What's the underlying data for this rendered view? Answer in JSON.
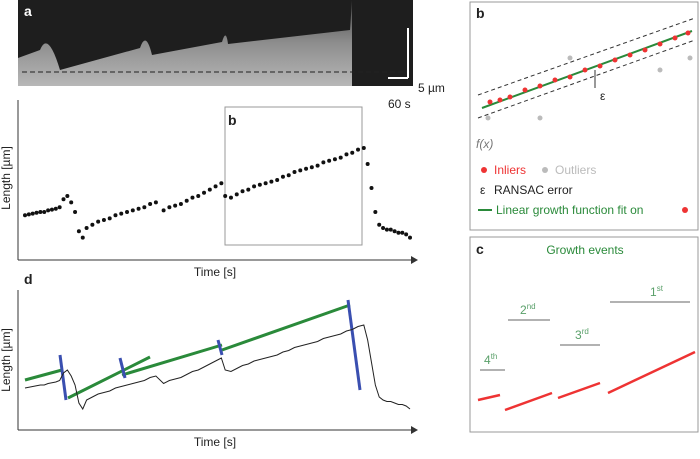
{
  "panels": {
    "a": "a",
    "b_inset": "b",
    "b": "b",
    "c": "c",
    "d": "d"
  },
  "scale_bar": {
    "length": "5 µm",
    "time": "60 s"
  },
  "trace": {
    "y_label": "Length [µm]",
    "x_label": "Time [s]",
    "x": [
      0,
      1,
      2,
      3,
      4,
      5,
      6,
      7,
      8,
      9,
      10,
      11,
      12,
      13,
      14,
      15,
      16,
      17.5,
      19,
      20.5,
      22,
      23.5,
      25,
      26.5,
      28,
      29.5,
      31,
      32.5,
      34,
      36,
      37.5,
      39,
      40.5,
      42,
      43.5,
      45,
      46.5,
      48,
      49.5,
      51,
      52,
      53.5,
      55,
      56.5,
      58,
      59.5,
      61,
      62.5,
      64,
      65.5,
      67,
      68.5,
      70,
      71.5,
      73,
      74.5,
      76,
      77.5,
      79,
      80.5,
      82,
      83.5,
      85,
      86.5,
      88,
      89,
      90,
      91,
      92,
      93,
      94,
      95,
      96,
      97,
      98,
      99,
      100
    ],
    "y": [
      28,
      28.5,
      29,
      29.5,
      30,
      30,
      31,
      31.5,
      32,
      33,
      38,
      40,
      36,
      30,
      18,
      14,
      20,
      22,
      24,
      25,
      26,
      28,
      29,
      30,
      31,
      32,
      33,
      35,
      36,
      31,
      33,
      34,
      35,
      37,
      39,
      40,
      42,
      44,
      46,
      48,
      40,
      39,
      41,
      43,
      44,
      46,
      47,
      48,
      49,
      50,
      52,
      53,
      55,
      56,
      57,
      58,
      59,
      61,
      62,
      63,
      64,
      66,
      67,
      69,
      70,
      60,
      45,
      30,
      22,
      20,
      19,
      19,
      18,
      17,
      17,
      16,
      14
    ],
    "xlim": [
      0,
      100
    ],
    "ylim": [
      0,
      100
    ]
  },
  "fit_panel": {
    "d_y_label": "Length [µm]",
    "d_x_label": "Time [s]"
  },
  "legend": {
    "fx": "f(x)",
    "epsilon": "ε",
    "inliers": "Inliers",
    "outliers": "Outliers",
    "eps_symbol": "ε",
    "ransac": "RANSAC error",
    "fit": "Linear growth function fit on"
  },
  "growth": {
    "title": "Growth events",
    "events": [
      {
        "n": "1",
        "suffix": "st"
      },
      {
        "n": "2",
        "suffix": "nd"
      },
      {
        "n": "3",
        "suffix": "rd"
      },
      {
        "n": "4",
        "suffix": "th"
      }
    ]
  }
}
